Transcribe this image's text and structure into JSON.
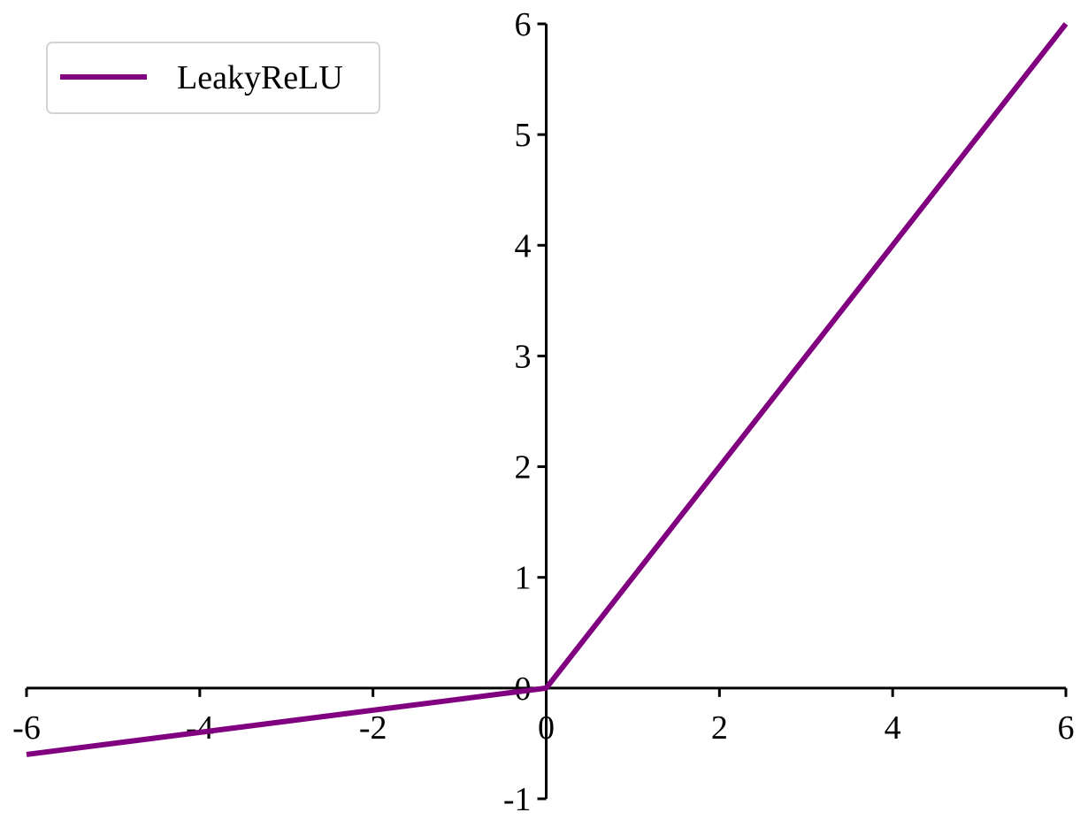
{
  "chart_data": {
    "type": "line",
    "title": "",
    "xlabel": "",
    "ylabel": "",
    "xlim": [
      -6,
      6
    ],
    "ylim": [
      -1,
      6
    ],
    "x_ticks": [
      -6,
      -4,
      -2,
      0,
      2,
      4,
      6
    ],
    "y_ticks": [
      -1,
      0,
      1,
      2,
      3,
      4,
      5,
      6
    ],
    "x_tick_labels": [
      "-6",
      "-4",
      "-2",
      "0",
      "2",
      "4",
      "6"
    ],
    "y_tick_labels": [
      "-1",
      "0",
      "1",
      "2",
      "3",
      "4",
      "5",
      "6"
    ],
    "spines": "centered at origin",
    "grid": false,
    "legend_position": "top-left",
    "series": [
      {
        "name": "LeakyReLU",
        "color": "#800080",
        "x": [
          -6,
          0,
          6
        ],
        "y": [
          -0.6,
          0,
          6
        ]
      }
    ]
  }
}
